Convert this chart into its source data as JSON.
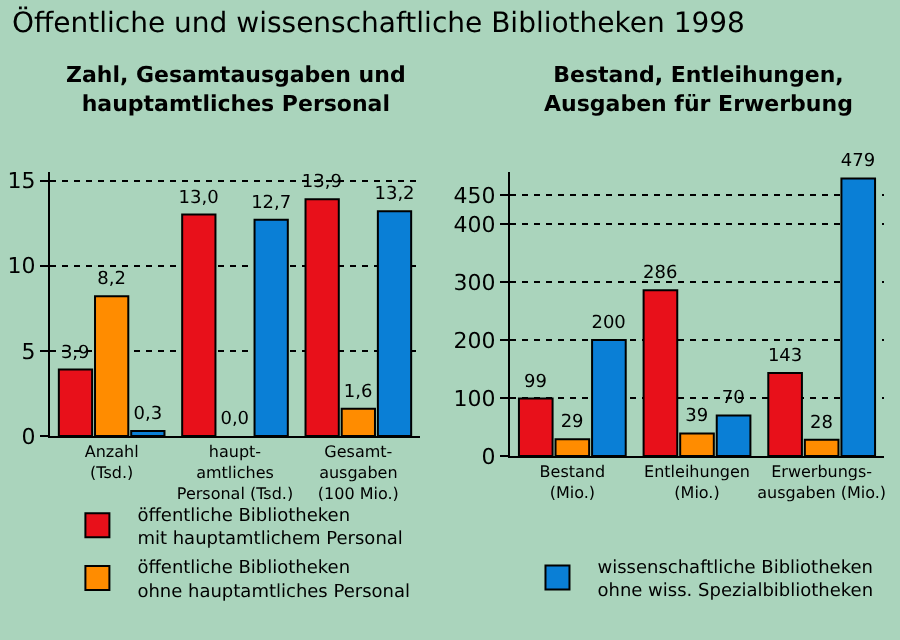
{
  "chart_data": [
    {
      "type": "bar",
      "title": "Öffentliche und wissenschaftliche Bibliotheken 1998",
      "subtitle": "Zahl, Gesamtausgaben und\nhauptamtliches Personal",
      "categories": [
        "Anzahl\n(Tsd.)",
        "haupt-\namtliches\nPersonal (Tsd.)",
        "Gesamt-\nausgaben\n(100 Mio.)"
      ],
      "series": [
        {
          "name": "öffentliche Bibliotheken\nmit hauptamtlichem Personal",
          "color": "#e8101a",
          "values": [
            3.9,
            13.0,
            13.9
          ],
          "value_labels": [
            "3,9",
            "13,0",
            "13,9"
          ]
        },
        {
          "name": "öffentliche Bibliotheken\nohne hauptamtliches Personal",
          "color": "#ff8c00",
          "values": [
            8.2,
            0.0,
            1.6
          ],
          "value_labels": [
            "8,2",
            "0,0",
            "1,6"
          ]
        },
        {
          "color": "#0a7fd6",
          "values": [
            0.3,
            12.7,
            13.2
          ],
          "value_labels": [
            "0,3",
            "12,7",
            "13,2"
          ]
        }
      ],
      "ylim": [
        0,
        15.5
      ],
      "yticks": [
        0,
        5,
        10,
        15
      ],
      "grid": "y",
      "legend": "bottom"
    },
    {
      "type": "bar",
      "title": "Bestand, Entleihungen,\nAusgaben für Erwerbung",
      "categories": [
        "Bestand\n(Mio.)",
        "Entleihungen\n(Mio.)",
        "Erwerbungs-\nausgaben (Mio.)"
      ],
      "series": [
        {
          "color": "#e8101a",
          "values": [
            99,
            286,
            143
          ]
        },
        {
          "color": "#ff8c00",
          "values": [
            29,
            39,
            28
          ]
        },
        {
          "name": "wissenschaftliche Bibliotheken\nohne wiss. Spezialbibliotheken",
          "color": "#0a7fd6",
          "values": [
            200,
            70,
            479
          ]
        }
      ],
      "ylim": [
        0,
        490
      ],
      "yticks": [
        0,
        100,
        200,
        300,
        400,
        450
      ],
      "data_labels": true,
      "grid": "y",
      "legend": "bottom"
    }
  ]
}
